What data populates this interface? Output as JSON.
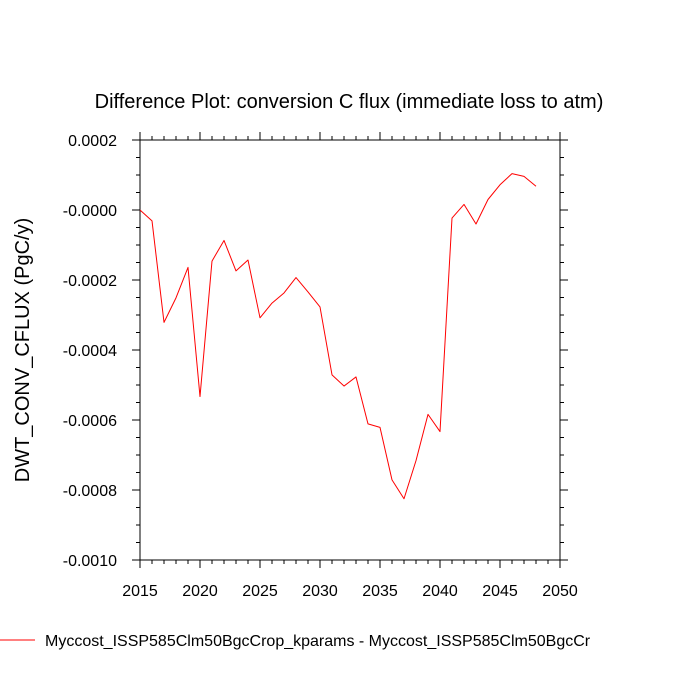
{
  "chart_data": {
    "type": "line",
    "title": "Difference Plot: conversion C flux (immediate loss to atm)",
    "xlabel": "",
    "ylabel": "DWT_CONV_CFLUX  (PgC/y)",
    "xlim": [
      2015,
      2050
    ],
    "ylim": [
      -0.001,
      0.0002
    ],
    "x_ticks": [
      2015,
      2020,
      2025,
      2030,
      2035,
      2040,
      2045,
      2050
    ],
    "x_tick_labels": [
      "2015",
      "2020",
      "2025",
      "2030",
      "2035",
      "2040",
      "2045",
      "2050"
    ],
    "y_ticks": [
      0.0002,
      0.0,
      -0.0002,
      -0.0004,
      -0.0006,
      -0.0008,
      -0.001
    ],
    "y_tick_labels": [
      "0.0002",
      "-0.0000",
      "-0.0002",
      "-0.0004",
      "-0.0006",
      "-0.0008",
      "-0.0010"
    ],
    "series": [
      {
        "name": "Myccost_ISSP585Clm50BgcCrop_kparams - Myccost_ISSP585Clm50BgcCr",
        "color": "#ff0000",
        "x": [
          2015,
          2016,
          2017,
          2018,
          2019,
          2020,
          2021,
          2022,
          2023,
          2024,
          2025,
          2026,
          2027,
          2028,
          2029,
          2030,
          2031,
          2032,
          2033,
          2034,
          2035,
          2036,
          2037,
          2038,
          2039,
          2040,
          2041,
          2042,
          2043,
          2044,
          2045,
          2046,
          2047,
          2048
        ],
        "values": [
          0.0,
          -3.1e-05,
          -0.000321,
          -0.000251,
          -0.000164,
          -0.000533,
          -0.000146,
          -8.7e-05,
          -0.000174,
          -0.000143,
          -0.000308,
          -0.000266,
          -0.000237,
          -0.000193,
          -0.000234,
          -0.000277,
          -0.000471,
          -0.000503,
          -0.000477,
          -0.000611,
          -0.000621,
          -0.000771,
          -0.000825,
          -0.000716,
          -0.000584,
          -0.000633,
          -2.3e-05,
          1.6e-05,
          -4e-05,
          3e-05,
          7.2e-05,
          0.000104,
          9.6e-05,
          6.8e-05
        ]
      }
    ],
    "legend": {
      "position": "bottom",
      "label": "Myccost_ISSP585Clm50BgcCrop_kparams - Myccost_ISSP585Clm50BgcCr"
    }
  }
}
